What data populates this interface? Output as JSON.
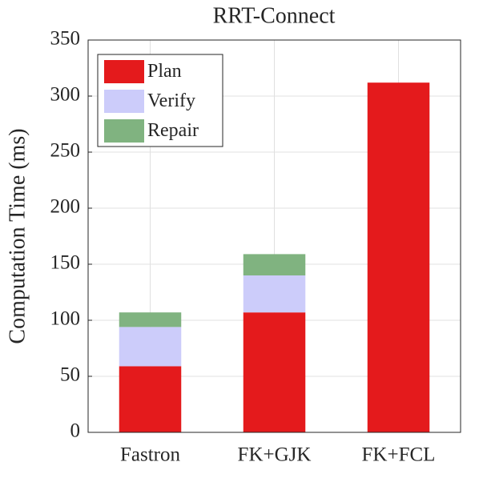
{
  "chart_data": {
    "type": "stacked-bar",
    "title": "RRT-Connect",
    "y_label": "Computation Time (ms)",
    "categories": [
      "Fastron",
      "FK+GJK",
      "FK+FCL"
    ],
    "series": [
      {
        "name": "Plan",
        "color": "#e41a1c",
        "values": [
          59,
          107,
          312
        ]
      },
      {
        "name": "Verify",
        "color": "#ccccfa",
        "values": [
          35,
          33,
          0
        ]
      },
      {
        "name": "Repair",
        "color": "#80b380",
        "values": [
          13,
          19,
          0
        ]
      }
    ],
    "ylim": [
      0,
      350
    ],
    "yticks": [
      0,
      50,
      100,
      150,
      200,
      250,
      300,
      350
    ],
    "grid": true,
    "legend": "upper-left"
  }
}
